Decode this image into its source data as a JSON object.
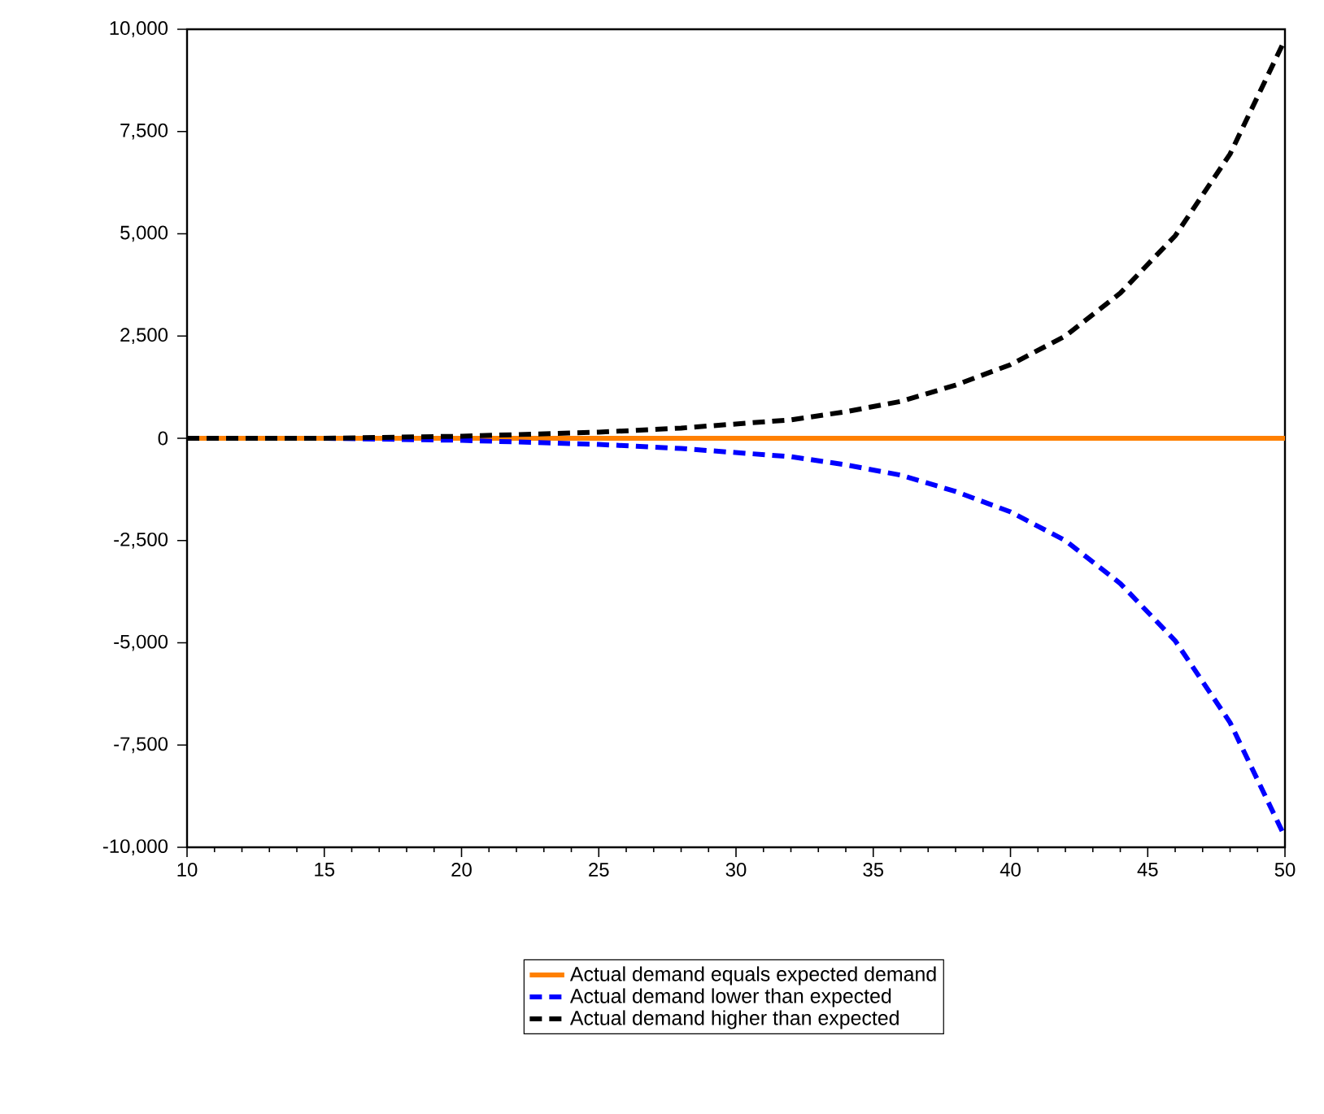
{
  "chart_data": {
    "type": "line",
    "x": [
      10,
      15,
      20,
      25,
      28,
      30,
      32,
      34,
      36,
      38,
      40,
      42,
      44,
      46,
      48,
      50
    ],
    "series": [
      {
        "name": "Actual demand equals expected demand",
        "color": "#ff8000",
        "line_style": "solid",
        "values": [
          0,
          0,
          0,
          0,
          0,
          0,
          0,
          0,
          0,
          0,
          0,
          0,
          0,
          0,
          0,
          0
        ]
      },
      {
        "name": "Actual demand lower than expected",
        "color": "#0000ff",
        "line_style": "dashed",
        "values": [
          0,
          0,
          -50,
          -150,
          -250,
          -350,
          -450,
          -650,
          -900,
          -1300,
          -1800,
          -2500,
          -3550,
          -4950,
          -6950,
          -9750
        ]
      },
      {
        "name": "Actual demand higher than expected",
        "color": "#000000",
        "line_style": "dashed",
        "values": [
          0,
          0,
          50,
          150,
          250,
          350,
          450,
          650,
          900,
          1300,
          1800,
          2500,
          3550,
          4950,
          6950,
          9750
        ]
      }
    ],
    "xlim": [
      10,
      50
    ],
    "xticks": [
      10,
      15,
      20,
      25,
      30,
      35,
      40,
      45,
      50
    ],
    "ylim": [
      -10000,
      10000
    ],
    "yticks": [
      {
        "value": -10000,
        "label": "-10,000"
      },
      {
        "value": -7500,
        "label": "-7,500"
      },
      {
        "value": -5000,
        "label": "-5,000"
      },
      {
        "value": -2500,
        "label": "-2,500"
      },
      0,
      {
        "value": 2500,
        "label": "2,500"
      },
      {
        "value": 5000,
        "label": "5,000"
      },
      {
        "value": 7500,
        "label": "7,500"
      },
      {
        "value": 10000,
        "label": "10,000"
      }
    ],
    "grid": false,
    "legend": "bottom",
    "marker": "none"
  }
}
